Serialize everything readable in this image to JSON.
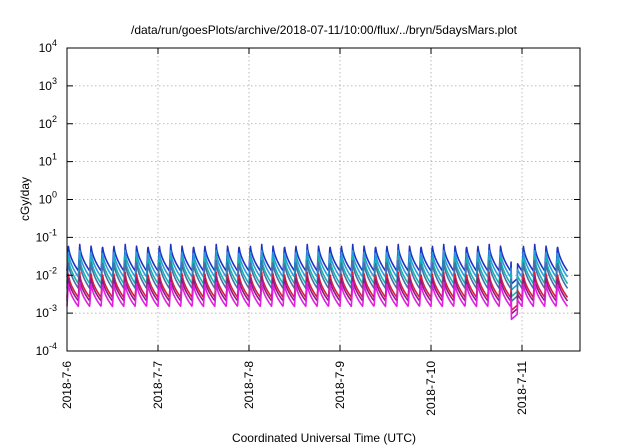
{
  "chart_data": {
    "type": "line",
    "title": "/data/run/goesPlots/archive/2018-07-11/10:00/flux/../bryn/5daysMars.plot",
    "xlabel": "Coordinated Universal Time (UTC)",
    "ylabel": "cGy/day",
    "y_scale": "log",
    "ylim_exponent": [
      -4,
      4
    ],
    "y_tick_base": "10",
    "y_tick_exponents": [
      "4",
      "3",
      "2",
      "1",
      "0",
      "-1",
      "-2",
      "-3",
      "-4"
    ],
    "x_tick_labels": [
      "2018-7-6",
      "2018-7-7",
      "2018-7-8",
      "2018-7-9",
      "2018-7-10",
      "2018-7-11"
    ],
    "xlim_days": [
      0,
      5.5
    ],
    "grid": true,
    "spike_period_days": 0.125,
    "data_gap_days": [
      4.88,
      4.95
    ],
    "series": [
      {
        "color": "#1f33c2",
        "peak": 0.065,
        "trough": 0.013
      },
      {
        "color": "#2a9be0",
        "peak": 0.045,
        "trough": 0.009
      },
      {
        "color": "#14b6b0",
        "peak": 0.032,
        "trough": 0.006
      },
      {
        "color": "#4a6fa8",
        "peak": 0.024,
        "trough": 0.0045
      },
      {
        "color": "#d9203a",
        "peak": 0.012,
        "trough": 0.0026
      },
      {
        "color": "#8e1a86",
        "peak": 0.009,
        "trough": 0.0021
      },
      {
        "color": "#e020e0",
        "peak": 0.0065,
        "trough": 0.0015
      }
    ]
  }
}
